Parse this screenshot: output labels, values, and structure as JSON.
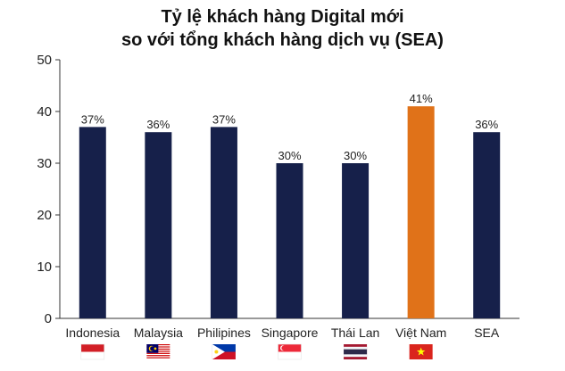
{
  "chart_data": {
    "type": "bar",
    "title_lines": [
      "Tỷ lệ khách hàng Digital mới",
      "so với tổng khách hàng dịch vụ (SEA)"
    ],
    "categories": [
      "Indonesia",
      "Malaysia",
      "Philipines",
      "Singapore",
      "Thái Lan",
      "Việt Nam",
      "SEA"
    ],
    "values": [
      37,
      36,
      37,
      30,
      30,
      41,
      36
    ],
    "value_labels": [
      "37%",
      "36%",
      "37%",
      "30%",
      "30%",
      "41%",
      "36%"
    ],
    "flags": [
      "indonesia-flag",
      "malaysia-flag",
      "philippines-flag",
      "singapore-flag",
      "thailand-flag",
      "vietnam-flag",
      ""
    ],
    "highlight_index": 5,
    "ylim": [
      0,
      50
    ],
    "yticks": [
      0,
      10,
      20,
      30,
      40,
      50
    ],
    "grid": false,
    "colors": {
      "bar": "#16204a",
      "highlight": "#e07219"
    }
  }
}
